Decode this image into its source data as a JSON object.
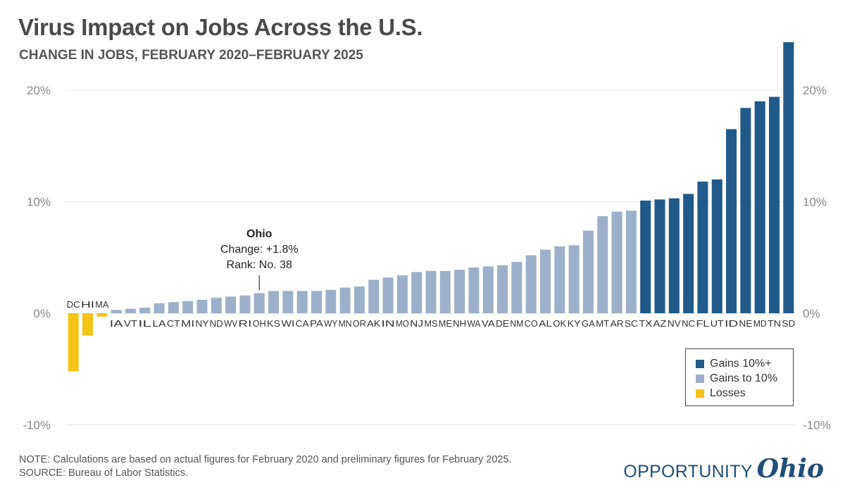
{
  "header": {
    "title": "Virus Impact on Jobs Across the U.S.",
    "subtitle": "CHANGE IN JOBS, FEBRUARY 2020–FEBRUARY 2025"
  },
  "footer": {
    "note": "NOTE: Calculations are based on actual figures for February 2020 and preliminary figures for February 2025.",
    "source": "SOURCE: Bureau of Labor Statistics."
  },
  "logo": {
    "word": "OPPORTUNITY",
    "script": "Ohio"
  },
  "colors": {
    "gains_10_plus": "#1f5a8a",
    "gains_to_10": "#9db0cb",
    "losses": "#f5c316",
    "grid": "#e6e6e6"
  },
  "legend": {
    "placement": "bottom-right",
    "items": [
      {
        "label": "Gains 10%+",
        "color": "#1f5a8a"
      },
      {
        "label": "Gains to 10%",
        "color": "#9db0cb"
      },
      {
        "label": "Losses",
        "color": "#f5c316"
      }
    ]
  },
  "annotation": {
    "state": "OH",
    "title": "Ohio",
    "line1": "Change: +1.8%",
    "line2": "Rank: No. 38"
  },
  "chart_data": {
    "type": "bar",
    "ylim": [
      -10,
      25
    ],
    "yticks": [
      -10,
      0,
      10,
      20
    ],
    "ytick_labels": [
      "-10%",
      "0%",
      "10%",
      "20%"
    ],
    "grid": true,
    "categories": [
      "DC",
      "HI",
      "MA",
      "IA",
      "VT",
      "IL",
      "LA",
      "CT",
      "MI",
      "NY",
      "ND",
      "WV",
      "RI",
      "OH",
      "KS",
      "WI",
      "CA",
      "PA",
      "WY",
      "MN",
      "OR",
      "AK",
      "IN",
      "MO",
      "NJ",
      "MS",
      "ME",
      "NH",
      "WA",
      "VA",
      "DE",
      "NM",
      "CO",
      "AL",
      "OK",
      "KY",
      "GA",
      "MT",
      "AR",
      "SC",
      "TX",
      "AZ",
      "NV",
      "NC",
      "FL",
      "UT",
      "ID",
      "NE",
      "MD",
      "TN",
      "SD"
    ],
    "values": [
      -5.2,
      -2.0,
      -0.3,
      0.3,
      0.4,
      0.5,
      0.9,
      1.0,
      1.1,
      1.2,
      1.4,
      1.5,
      1.6,
      1.8,
      2.0,
      2.0,
      2.0,
      2.0,
      2.1,
      2.3,
      2.4,
      3.0,
      3.2,
      3.4,
      3.7,
      3.8,
      3.8,
      3.9,
      4.1,
      4.2,
      4.3,
      4.6,
      5.2,
      5.7,
      6.0,
      6.1,
      7.4,
      8.7,
      9.1,
      9.2,
      10.1,
      10.2,
      10.3,
      10.7,
      11.8,
      12.0,
      16.5,
      18.4,
      19.0,
      19.4,
      24.3
    ]
  }
}
